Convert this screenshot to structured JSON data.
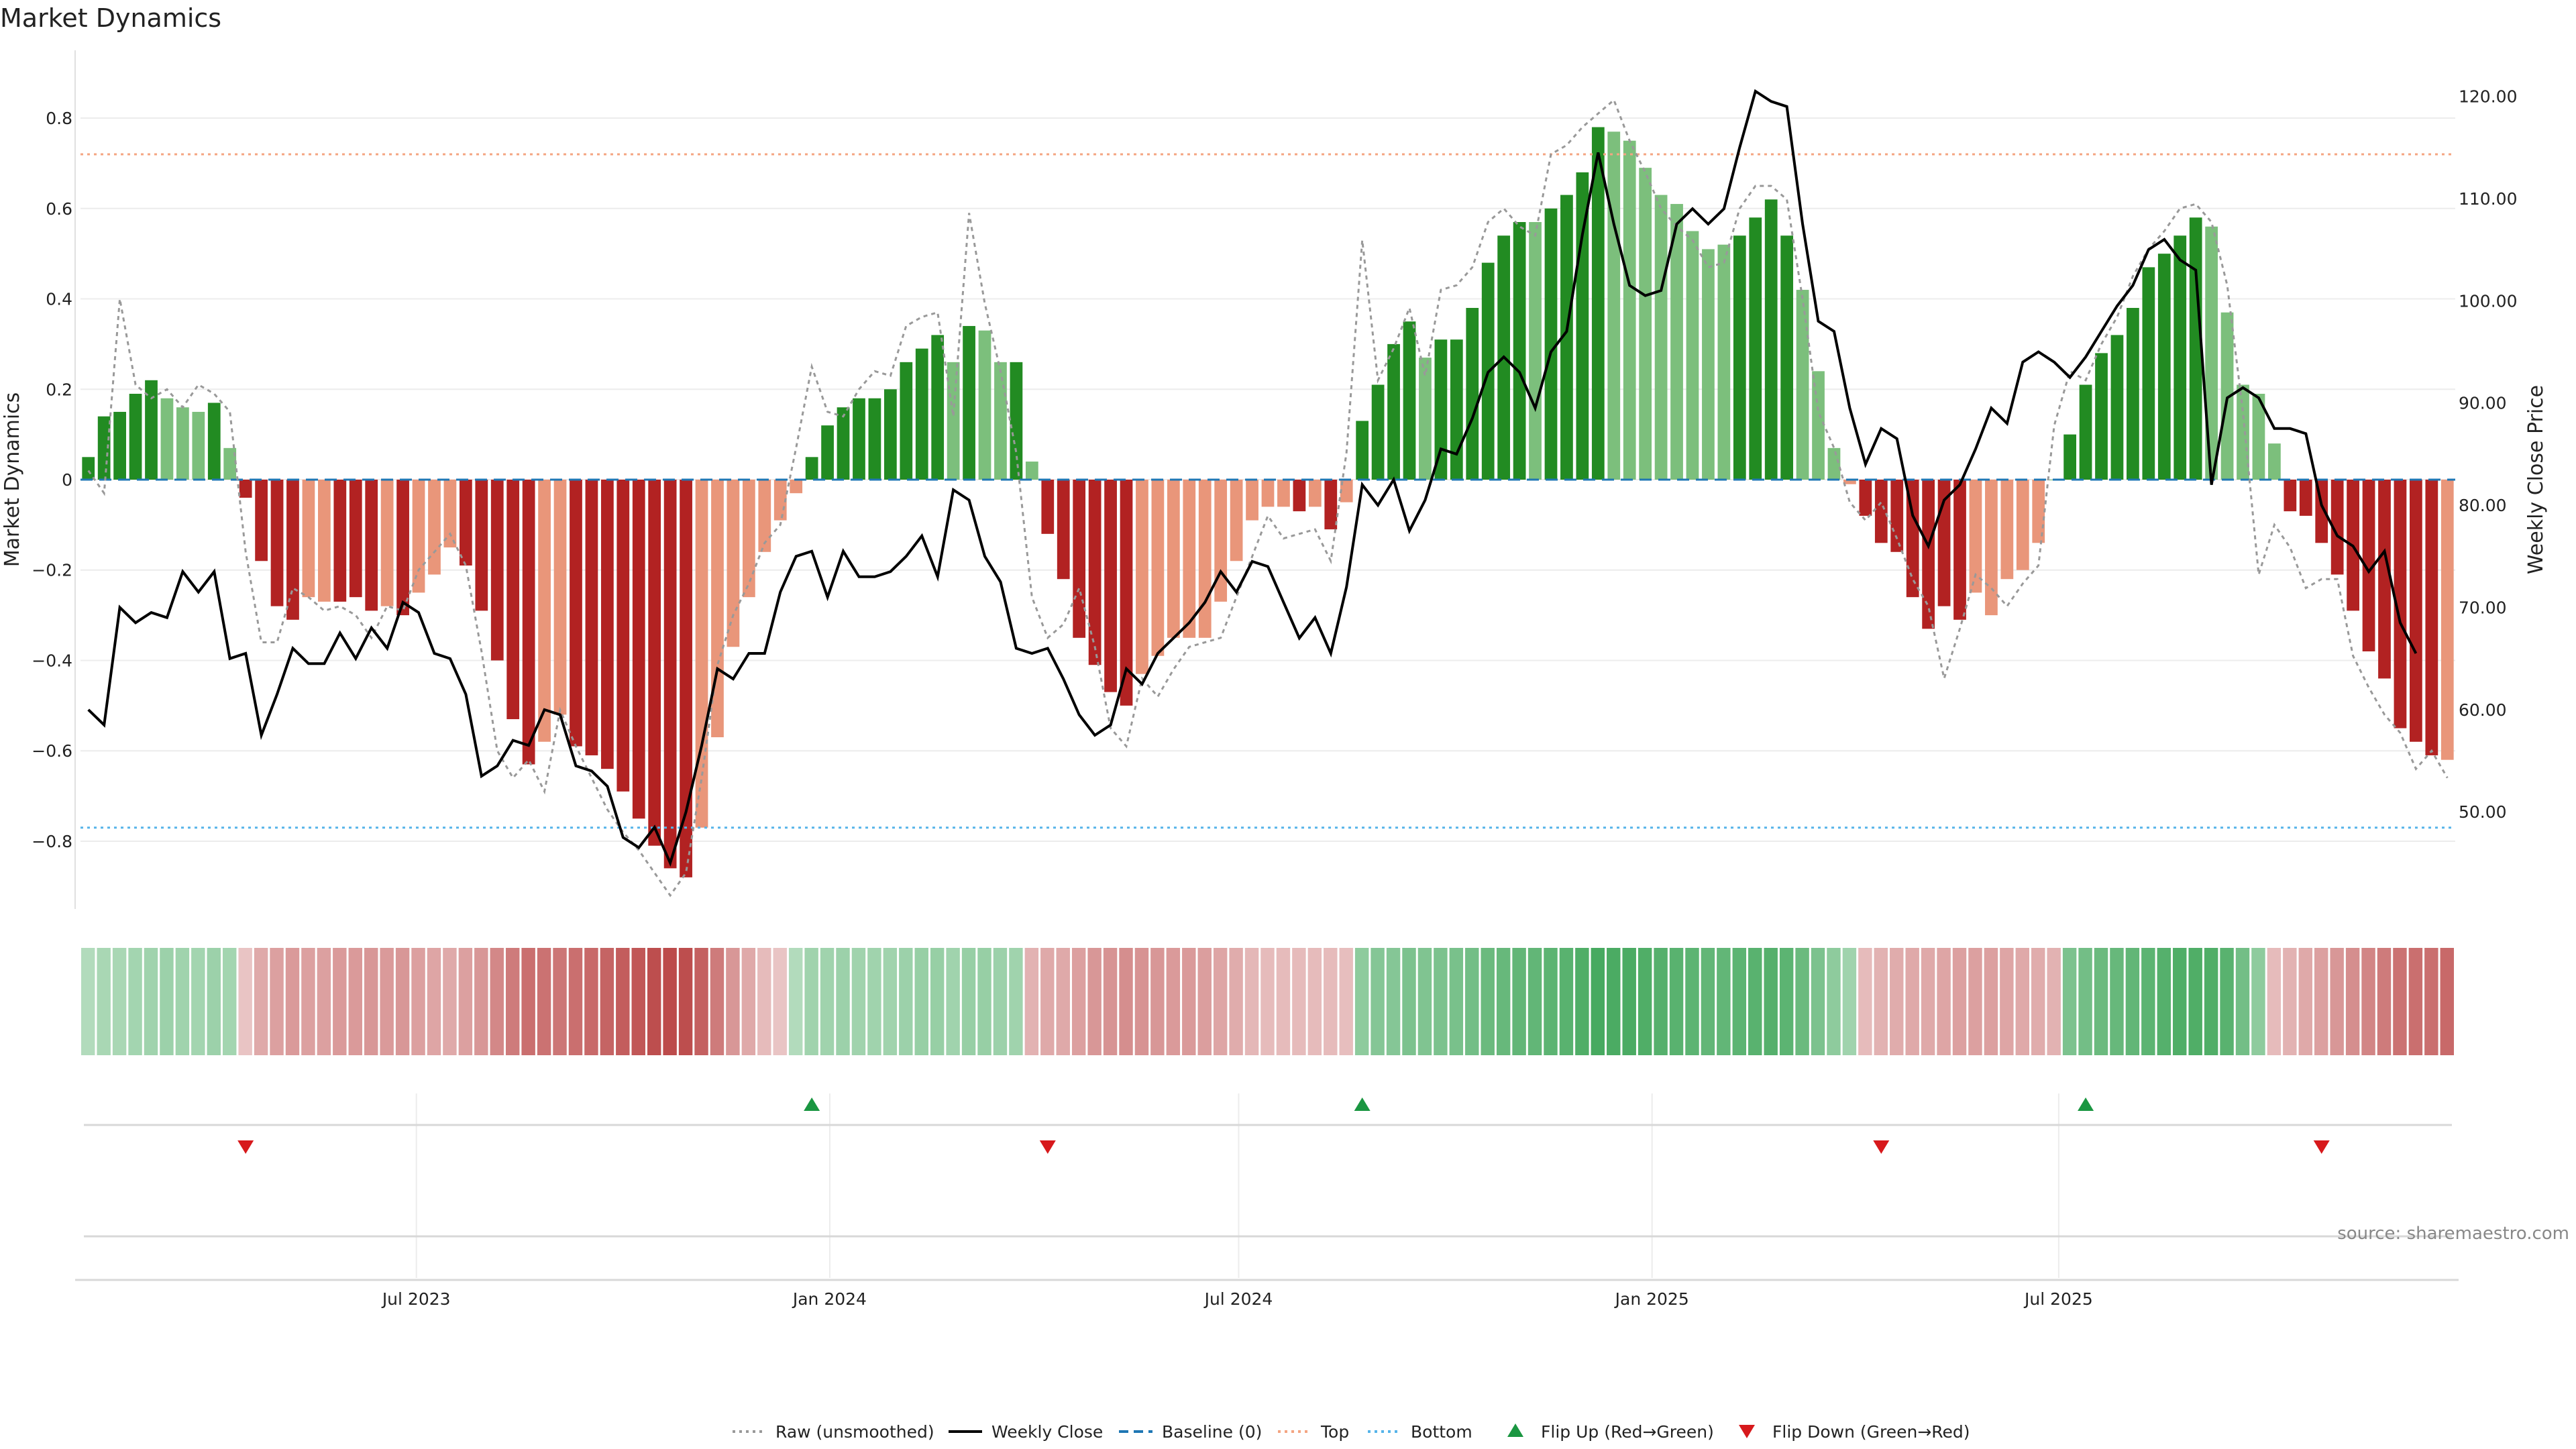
{
  "chart_data": {
    "type": "bar",
    "title": "Market Dynamics",
    "ylabel_left": "Market Dynamics",
    "ylabel_right": "Weekly Close Price",
    "source": "source: sharemaestro.com",
    "left_axis": {
      "ylim": [
        -0.95,
        0.95
      ],
      "ticks": [
        0.8,
        0.6,
        0.4,
        0.2,
        0,
        -0.2,
        -0.4,
        -0.6,
        -0.8
      ],
      "tick_labels": [
        "0.8",
        "0.6",
        "0.4",
        "0.2",
        "0",
        "−0.2",
        "−0.4",
        "−0.6",
        "−0.8"
      ]
    },
    "right_axis": {
      "ylim": [
        40.5,
        124.5
      ],
      "ticks": [
        120,
        110,
        100,
        90,
        80,
        70,
        60,
        50
      ],
      "tick_labels": [
        "120.00",
        "110.00",
        "100.00",
        "90.00",
        "80.00",
        "70.00",
        "60.00",
        "50.00"
      ]
    },
    "x_axis": {
      "start": "2023-02-05",
      "step_days": 7,
      "ticks": [
        {
          "date": "2023-07-01",
          "label": "Jul 2023"
        },
        {
          "date": "2024-01-01",
          "label": "Jan 2024"
        },
        {
          "date": "2024-07-01",
          "label": "Jul 2024"
        },
        {
          "date": "2025-01-01",
          "label": "Jan 2025"
        },
        {
          "date": "2025-07-01",
          "label": "Jul 2025"
        }
      ]
    },
    "reference_lines": {
      "baseline": 0,
      "top": 0.72,
      "bottom": -0.77
    },
    "colors": {
      "strong_green": "#228b22",
      "light_green": "#7cbf7c",
      "strong_red": "#b22222",
      "light_red": "#e9967a",
      "close_line": "#000000",
      "raw_line": "#999999",
      "baseline": "#1f77b4",
      "top": "#f4a582",
      "bottom": "#56b4e9",
      "flip_up": "#1a9641",
      "flip_down": "#d7191c"
    },
    "momentum": [
      0.05,
      0.14,
      0.15,
      0.19,
      0.22,
      0.18,
      0.16,
      0.15,
      0.17,
      0.07,
      -0.04,
      -0.18,
      -0.28,
      -0.31,
      -0.26,
      -0.27,
      -0.27,
      -0.26,
      -0.29,
      -0.28,
      -0.3,
      -0.25,
      -0.21,
      -0.15,
      -0.19,
      -0.29,
      -0.4,
      -0.53,
      -0.63,
      -0.58,
      -0.52,
      -0.59,
      -0.61,
      -0.64,
      -0.69,
      -0.75,
      -0.81,
      -0.86,
      -0.88,
      -0.77,
      -0.57,
      -0.37,
      -0.26,
      -0.16,
      -0.09,
      -0.03,
      0.05,
      0.12,
      0.16,
      0.18,
      0.18,
      0.2,
      0.26,
      0.29,
      0.32,
      0.26,
      0.34,
      0.33,
      0.26,
      0.26,
      0.04,
      -0.12,
      -0.22,
      -0.35,
      -0.41,
      -0.47,
      -0.5,
      -0.43,
      -0.39,
      -0.35,
      -0.35,
      -0.35,
      -0.27,
      -0.18,
      -0.09,
      -0.06,
      -0.06,
      -0.07,
      -0.06,
      -0.11,
      -0.05,
      0.13,
      0.21,
      0.3,
      0.35,
      0.27,
      0.31,
      0.31,
      0.38,
      0.48,
      0.54,
      0.57,
      0.57,
      0.6,
      0.63,
      0.68,
      0.78,
      0.77,
      0.75,
      0.69,
      0.63,
      0.61,
      0.55,
      0.51,
      0.52,
      0.54,
      0.58,
      0.62,
      0.54,
      0.42,
      0.24,
      0.07,
      -0.01,
      -0.08,
      -0.14,
      -0.16,
      -0.26,
      -0.33,
      -0.28,
      -0.31,
      -0.25,
      -0.3,
      -0.22,
      -0.2,
      -0.14,
      0.0,
      0.1,
      0.21,
      0.28,
      0.32,
      0.38,
      0.47,
      0.5,
      0.54,
      0.58,
      0.56,
      0.37,
      0.21,
      0.19,
      0.08,
      -0.07,
      -0.08,
      -0.14,
      -0.21,
      -0.29,
      -0.38,
      -0.44,
      -0.55,
      -0.58,
      -0.61,
      -0.62
    ],
    "momentum_strong": [
      1,
      1,
      1,
      1,
      1,
      0,
      0,
      0,
      1,
      0,
      1,
      1,
      1,
      1,
      0,
      0,
      1,
      1,
      1,
      0,
      1,
      0,
      0,
      0,
      1,
      1,
      1,
      1,
      1,
      0,
      0,
      1,
      1,
      1,
      1,
      1,
      1,
      1,
      1,
      0,
      0,
      0,
      0,
      0,
      0,
      0,
      1,
      1,
      1,
      1,
      1,
      1,
      1,
      1,
      1,
      0,
      1,
      0,
      0,
      1,
      0,
      1,
      1,
      1,
      1,
      1,
      1,
      0,
      0,
      0,
      0,
      0,
      0,
      0,
      0,
      0,
      0,
      1,
      0,
      1,
      0,
      1,
      1,
      1,
      1,
      0,
      1,
      1,
      1,
      1,
      1,
      1,
      0,
      1,
      1,
      1,
      1,
      0,
      0,
      0,
      0,
      0,
      0,
      0,
      0,
      1,
      1,
      1,
      1,
      0,
      0,
      0,
      0,
      1,
      1,
      1,
      1,
      1,
      1,
      1,
      0,
      0,
      0,
      0,
      0,
      0,
      1,
      1,
      1,
      1,
      1,
      1,
      1,
      1,
      1,
      0,
      0,
      0,
      0,
      0,
      1,
      1,
      1,
      1,
      1,
      1,
      1,
      1,
      1,
      1
    ],
    "raw": [
      0.02,
      -0.03,
      0.4,
      0.21,
      0.18,
      0.2,
      0.16,
      0.21,
      0.19,
      0.15,
      -0.16,
      -0.36,
      -0.36,
      -0.24,
      -0.26,
      -0.29,
      -0.28,
      -0.3,
      -0.35,
      -0.28,
      -0.29,
      -0.2,
      -0.16,
      -0.12,
      -0.19,
      -0.38,
      -0.6,
      -0.66,
      -0.62,
      -0.69,
      -0.51,
      -0.59,
      -0.66,
      -0.73,
      -0.78,
      -0.82,
      -0.87,
      -0.92,
      -0.87,
      -0.66,
      -0.41,
      -0.3,
      -0.23,
      -0.14,
      -0.1,
      0.07,
      0.25,
      0.15,
      0.14,
      0.2,
      0.24,
      0.23,
      0.34,
      0.36,
      0.37,
      0.14,
      0.59,
      0.39,
      0.24,
      0.06,
      -0.26,
      -0.35,
      -0.32,
      -0.24,
      -0.37,
      -0.55,
      -0.59,
      -0.44,
      -0.48,
      -0.42,
      -0.37,
      -0.36,
      -0.35,
      -0.26,
      -0.17,
      -0.08,
      -0.13,
      -0.12,
      -0.11,
      -0.18,
      0.06,
      0.53,
      0.22,
      0.29,
      0.38,
      0.23,
      0.42,
      0.43,
      0.47,
      0.57,
      0.6,
      0.56,
      0.54,
      0.72,
      0.74,
      0.78,
      0.81,
      0.84,
      0.75,
      0.68,
      0.6,
      0.56,
      0.53,
      0.47,
      0.48,
      0.6,
      0.65,
      0.65,
      0.62,
      0.4,
      0.15,
      0.07,
      -0.05,
      -0.09,
      -0.05,
      -0.13,
      -0.22,
      -0.28,
      -0.44,
      -0.33,
      -0.21,
      -0.24,
      -0.28,
      -0.23,
      -0.19,
      0.12,
      0.24,
      0.22,
      0.3,
      0.36,
      0.45,
      0.51,
      0.55,
      0.6,
      0.61,
      0.57,
      0.43,
      0.15,
      -0.21,
      -0.1,
      -0.15,
      -0.24,
      -0.22,
      -0.22,
      -0.39,
      -0.46,
      -0.52,
      -0.56,
      -0.64,
      -0.6,
      -0.66
    ],
    "close": [
      60.0,
      58.5,
      70.0,
      68.5,
      69.5,
      69.0,
      73.5,
      71.5,
      73.5,
      65.0,
      65.5,
      57.5,
      61.5,
      66.0,
      64.5,
      64.5,
      67.5,
      65.0,
      68.0,
      66.0,
      70.5,
      69.5,
      65.5,
      65.0,
      61.5,
      53.5,
      54.5,
      57.0,
      56.5,
      60.0,
      59.5,
      54.5,
      54.0,
      52.5,
      47.5,
      46.5,
      48.5,
      45.0,
      50.0,
      56.5,
      64.0,
      63.0,
      65.5,
      65.5,
      71.5,
      75.0,
      75.5,
      71.0,
      75.5,
      73.0,
      73.0,
      73.5,
      75.0,
      77.0,
      73.0,
      81.5,
      80.5,
      75.0,
      72.5,
      66.0,
      65.5,
      66.0,
      63.0,
      59.5,
      57.5,
      58.5,
      64.0,
      62.5,
      65.5,
      67.0,
      68.5,
      70.5,
      73.5,
      71.5,
      74.5,
      74.0,
      70.5,
      67.0,
      69.0,
      65.5,
      72.0,
      82.0,
      80.0,
      82.5,
      77.5,
      80.5,
      85.5,
      85.0,
      88.5,
      93.0,
      94.5,
      93.0,
      89.5,
      95.0,
      97.0,
      106.5,
      114.5,
      107.5,
      101.5,
      100.5,
      101.0,
      107.5,
      109.0,
      107.5,
      109.0,
      115.0,
      120.5,
      119.5,
      119.0,
      107.5,
      98.0,
      97.0,
      89.5,
      84.0,
      87.5,
      86.5,
      79.0,
      76.0,
      80.5,
      82.0,
      85.5,
      89.5,
      88.0,
      94.0,
      95.0,
      94.0,
      92.5,
      94.5,
      97.0,
      99.5,
      101.5,
      105.0,
      106.0,
      104.0,
      103.0,
      82.0,
      90.5,
      91.5,
      90.5,
      87.5,
      87.5,
      87.0,
      80.0,
      77.0,
      76.0,
      73.5,
      75.5,
      68.5,
      65.5
    ],
    "heat_strip": [
      0.2,
      0.25,
      0.25,
      0.28,
      0.3,
      0.32,
      0.3,
      0.28,
      0.32,
      0.28,
      -0.15,
      -0.3,
      -0.35,
      -0.38,
      -0.35,
      -0.35,
      -0.38,
      -0.38,
      -0.4,
      -0.38,
      -0.4,
      -0.35,
      -0.32,
      -0.3,
      -0.35,
      -0.4,
      -0.48,
      -0.55,
      -0.62,
      -0.6,
      -0.58,
      -0.62,
      -0.65,
      -0.68,
      -0.72,
      -0.75,
      -0.8,
      -0.82,
      -0.8,
      -0.7,
      -0.55,
      -0.4,
      -0.3,
      -0.2,
      -0.15,
      0.2,
      0.3,
      0.3,
      0.32,
      0.3,
      0.3,
      0.3,
      0.32,
      0.35,
      0.35,
      0.3,
      0.35,
      0.35,
      0.32,
      0.3,
      -0.25,
      -0.3,
      -0.3,
      -0.35,
      -0.4,
      -0.42,
      -0.45,
      -0.42,
      -0.4,
      -0.38,
      -0.38,
      -0.36,
      -0.32,
      -0.28,
      -0.22,
      -0.2,
      -0.2,
      -0.2,
      -0.2,
      -0.2,
      -0.18,
      0.4,
      0.45,
      0.45,
      0.5,
      0.48,
      0.5,
      0.52,
      0.55,
      0.6,
      0.62,
      0.65,
      0.65,
      0.68,
      0.7,
      0.75,
      0.8,
      0.78,
      0.78,
      0.75,
      0.72,
      0.7,
      0.68,
      0.65,
      0.65,
      0.68,
      0.7,
      0.72,
      0.68,
      0.6,
      0.5,
      0.4,
      0.3,
      -0.2,
      -0.25,
      -0.28,
      -0.3,
      -0.3,
      -0.32,
      -0.35,
      -0.35,
      -0.35,
      -0.32,
      -0.3,
      -0.28,
      -0.25,
      0.5,
      0.55,
      0.6,
      0.62,
      0.65,
      0.68,
      0.72,
      0.75,
      0.75,
      0.75,
      0.7,
      0.55,
      0.4,
      -0.2,
      -0.25,
      -0.3,
      -0.35,
      -0.4,
      -0.45,
      -0.5,
      -0.55,
      -0.6,
      -0.62,
      -0.62,
      -0.65
    ],
    "flips_up": [
      {
        "index": 46
      },
      {
        "index": 81
      },
      {
        "index": 127
      }
    ],
    "flips_down": [
      {
        "index": 10
      },
      {
        "index": 61
      },
      {
        "index": 114
      },
      {
        "index": 142
      }
    ],
    "legend": [
      {
        "label": "Raw (unsmoothed)",
        "kind": "line",
        "dash": "dotted",
        "color": "#999999"
      },
      {
        "label": "Weekly Close",
        "kind": "line",
        "dash": "solid",
        "color": "#000000"
      },
      {
        "label": "Baseline (0)",
        "kind": "line",
        "dash": "dashed",
        "color": "#1f77b4"
      },
      {
        "label": "Top",
        "kind": "line",
        "dash": "dotted",
        "color": "#f4a582"
      },
      {
        "label": "Bottom",
        "kind": "line",
        "dash": "dotted",
        "color": "#56b4e9"
      },
      {
        "label": "Flip Up (Red→Green)",
        "kind": "marker-up",
        "color": "#1a9641"
      },
      {
        "label": "Flip Down (Green→Red)",
        "kind": "marker-down",
        "color": "#d7191c"
      }
    ]
  }
}
